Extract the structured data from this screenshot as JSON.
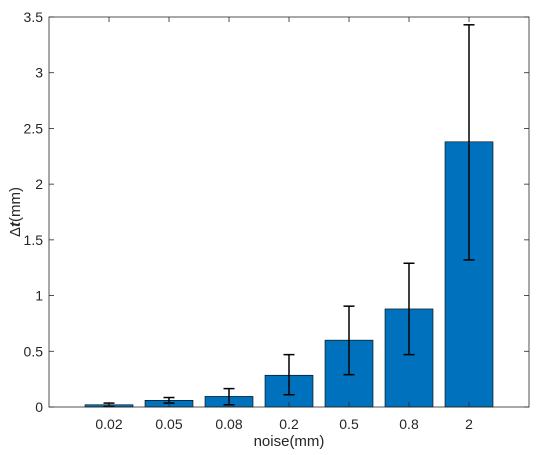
{
  "chart_data": {
    "type": "bar",
    "categories": [
      "0.02",
      "0.05",
      "0.08",
      "0.2",
      "0.5",
      "0.8",
      "2"
    ],
    "values": [
      0.02,
      0.06,
      0.095,
      0.285,
      0.6,
      0.88,
      2.38
    ],
    "error_low": [
      0.005,
      0.035,
      0.02,
      0.11,
      0.29,
      0.47,
      1.32
    ],
    "error_high": [
      0.035,
      0.085,
      0.165,
      0.47,
      0.905,
      1.29,
      3.43
    ],
    "xlabel": "noise(mm)",
    "ylabel": {
      "prefix": "Δ",
      "symbol": "t",
      "unit": "(mm)"
    },
    "ylim": [
      0,
      3.5
    ],
    "yticks": [
      "0",
      "0.5",
      "1",
      "1.5",
      "2",
      "2.5",
      "3",
      "3.5"
    ],
    "grid": false,
    "legend": "none",
    "bar_color": "#0072bd",
    "error_bar_color": "#000000"
  }
}
